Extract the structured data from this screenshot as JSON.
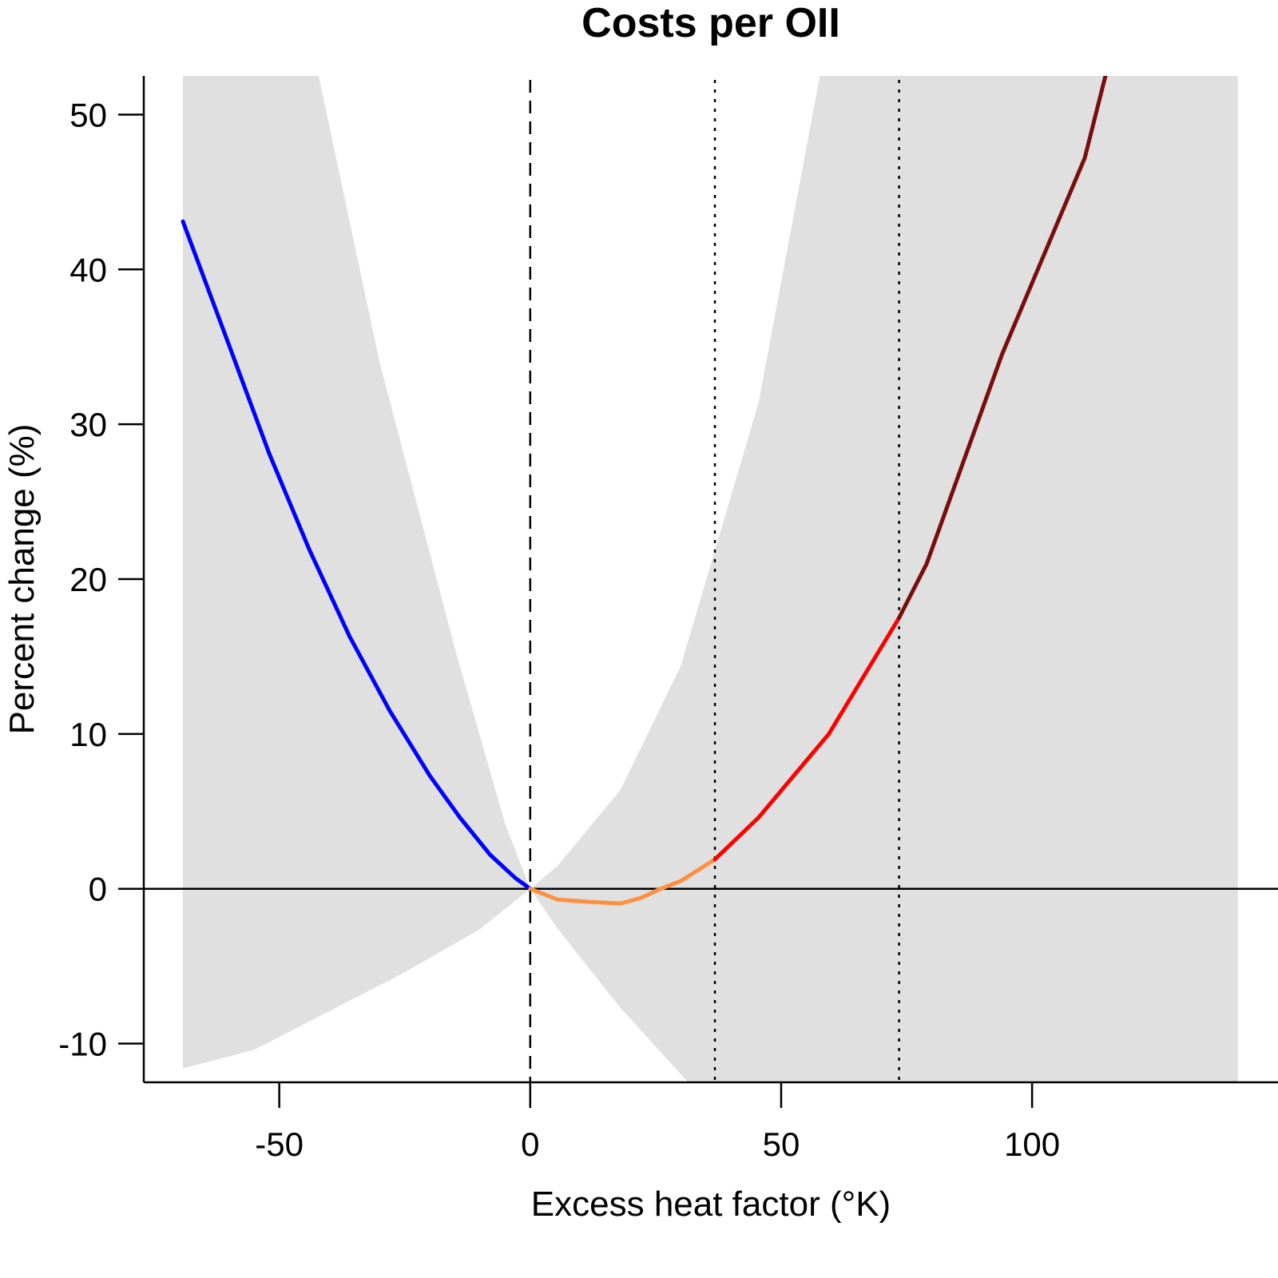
{
  "chart_data": {
    "type": "line",
    "title": "Costs per OII",
    "xlabel": "Excess heat factor (°K)",
    "ylabel": "Percent change (%)",
    "xlim": [
      -77,
      149
    ],
    "ylim": [
      -12.5,
      52.5
    ],
    "x_ticks": [
      -50,
      0,
      50,
      100
    ],
    "x_tick_labels": [
      "-50",
      "0",
      "50",
      "100"
    ],
    "y_ticks": [
      -10,
      0,
      10,
      20,
      30,
      40,
      50
    ],
    "y_tick_labels": [
      "-10",
      "0",
      "10",
      "20",
      "30",
      "40",
      "50"
    ],
    "grid": false,
    "reference_lines": [
      {
        "axis": "y",
        "value": 0,
        "style": "solid"
      },
      {
        "axis": "x",
        "value": 0,
        "style": "dashed"
      },
      {
        "axis": "x",
        "value": 36.8,
        "style": "dotted"
      },
      {
        "axis": "x",
        "value": 73.5,
        "style": "dotted"
      }
    ],
    "confidence_band": {
      "color": "#e0e0e0",
      "upper": [
        [
          -69.2,
          53
        ],
        [
          -42.5,
          53
        ],
        [
          -30,
          34
        ],
        [
          -15,
          15.5
        ],
        [
          -5,
          4.2
        ],
        [
          0,
          0
        ],
        [
          5.5,
          1.5
        ],
        [
          18,
          6.4
        ],
        [
          30,
          14.4
        ],
        [
          45.5,
          31.4
        ],
        [
          58,
          53
        ],
        [
          141,
          53
        ]
      ],
      "lower": [
        [
          141,
          -12.5
        ],
        [
          31.5,
          -12.5
        ],
        [
          18,
          -7.7
        ],
        [
          5.5,
          -2.6
        ],
        [
          0,
          0
        ],
        [
          -10,
          -2.6
        ],
        [
          -25,
          -5.4
        ],
        [
          -40,
          -7.9
        ],
        [
          -55,
          -10.4
        ],
        [
          -69.2,
          -11.6
        ]
      ]
    },
    "series": [
      {
        "color": "#0000ff",
        "values": [
          [
            -69.2,
            43.1
          ],
          [
            -60,
            35.1
          ],
          [
            -52,
            28.1
          ],
          [
            -44,
            21.9
          ],
          [
            -36,
            16.3
          ],
          [
            -28,
            11.5
          ],
          [
            -20,
            7.3
          ],
          [
            -14,
            4.6
          ],
          [
            -8,
            2.2
          ],
          [
            -3,
            0.7
          ],
          [
            0,
            0
          ]
        ]
      },
      {
        "color": "#fd9040",
        "values": [
          [
            0,
            0
          ],
          [
            5.5,
            -0.7
          ],
          [
            12,
            -0.85
          ],
          [
            18,
            -0.95
          ],
          [
            22,
            -0.6
          ],
          [
            26,
            0
          ],
          [
            30,
            0.5
          ],
          [
            36.8,
            1.9
          ]
        ]
      },
      {
        "color": "#ff0000",
        "values": [
          [
            36.8,
            1.9
          ],
          [
            45.5,
            4.6
          ],
          [
            59.5,
            10
          ],
          [
            73.5,
            17.5
          ]
        ]
      },
      {
        "color": "#7a0d0d",
        "values": [
          [
            73.5,
            17.5
          ],
          [
            79,
            21
          ],
          [
            94,
            34.5
          ],
          [
            110.5,
            47.2
          ],
          [
            115,
            53
          ]
        ]
      }
    ]
  }
}
